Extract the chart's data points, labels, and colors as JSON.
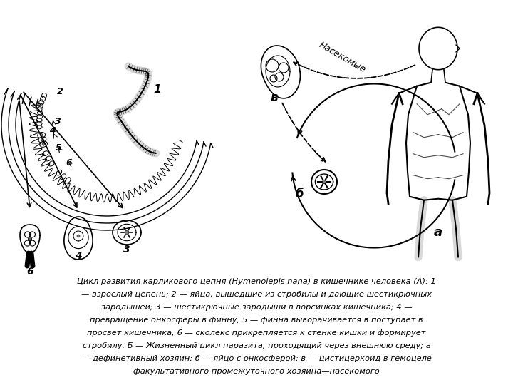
{
  "bg_color": "#ffffff",
  "label_a": "а",
  "label_b": "б",
  "label_v": "в",
  "label_nasekomye": "Насекомые",
  "label_1": "1",
  "label_2": "2",
  "label_3": "3",
  "label_4": "4",
  "label_5": "5",
  "label_6": "6",
  "caption_lines": [
    "Цикл развития карликового цепня (Hymenolepis nana) в кишечнике человека (А): 1",
    "— взрослый цепень; 2 — яйца, вышедшие из стробилы и дающие шестикрючных",
    "зародышей; 3 — шестикрючные зародыши в ворсинках кишечника; 4 —",
    "превращение онкосферы в финну; 5 — финна выворачивается в поступает в",
    "просвет кишечника; 6 — сколекс прикрепляется к стенке кишки и формирует",
    "стробилу. Б — Жизненный цикл паразита, проходящий через внешнюю среду; а",
    "— дефинетивный хозяин; б — яйцо с онкосферой; в — цистицеркоид в гемоцеле",
    "факультативного промежуточного хозяина—насекомого"
  ]
}
